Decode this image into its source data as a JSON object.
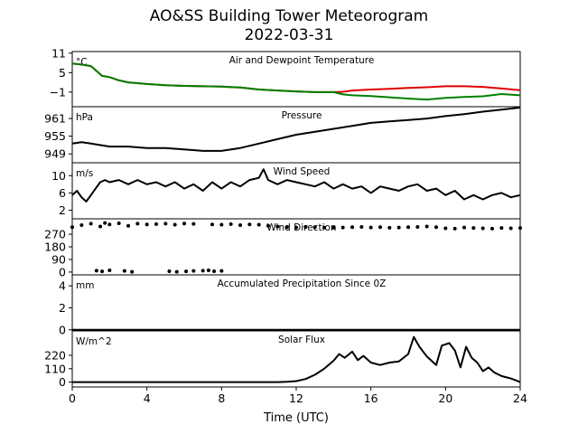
{
  "figure": {
    "title": "AO&SS Building Tower Meteorogram",
    "subtitle": "2022-03-31",
    "xlabel": "Time (UTC)"
  },
  "colors": {
    "temperature": "#e00000",
    "dewpoint": "#008000",
    "default_line": "#000000"
  },
  "chart_data": [
    {
      "type": "line",
      "title": "Air and Dewpoint Temperature",
      "unit": "°C",
      "xlim": [
        0,
        24
      ],
      "ylim": [
        -5.5,
        11.5
      ],
      "yticks": [
        11,
        5,
        -1
      ],
      "ytick_labels": [
        "11",
        "5",
        "−1"
      ],
      "series": [
        {
          "role": "temperature",
          "color": "#e00000",
          "x": [
            0,
            0.5,
            1,
            1.3,
            1.6,
            2,
            2.5,
            3,
            4,
            5,
            6,
            7,
            8,
            9,
            10,
            11,
            12,
            13,
            14,
            14.5,
            15,
            16,
            17,
            18,
            19,
            20,
            21,
            22,
            23,
            24
          ],
          "y": [
            7.8,
            7.5,
            7,
            5.5,
            4,
            3.6,
            2.6,
            2,
            1.5,
            1.1,
            0.9,
            0.8,
            0.7,
            0.4,
            -0.2,
            -0.5,
            -0.8,
            -1,
            -1,
            -0.9,
            -0.5,
            -0.2,
            0,
            0.3,
            0.5,
            0.8,
            0.8,
            0.6,
            0.1,
            -0.4
          ]
        },
        {
          "role": "dewpoint",
          "color": "#008000",
          "x": [
            0,
            0.5,
            1,
            1.3,
            1.6,
            2,
            2.5,
            3,
            4,
            5,
            6,
            7,
            8,
            9,
            10,
            11,
            12,
            13,
            14,
            14.5,
            15,
            16,
            17,
            18,
            19,
            20,
            21,
            22,
            23,
            24
          ],
          "y": [
            7.8,
            7.5,
            7,
            5.5,
            4,
            3.6,
            2.6,
            2,
            1.5,
            1.1,
            0.9,
            0.8,
            0.7,
            0.4,
            -0.2,
            -0.5,
            -0.8,
            -1,
            -1,
            -1.7,
            -2,
            -2.2,
            -2.6,
            -3,
            -3.3,
            -2.8,
            -2.5,
            -2.3,
            -1.6,
            -2
          ]
        }
      ]
    },
    {
      "type": "line",
      "title": "Pressure",
      "unit": "hPa",
      "xlim": [
        0,
        24
      ],
      "ylim": [
        946,
        965
      ],
      "yticks": [
        961,
        955,
        949
      ],
      "ytick_labels": [
        "961",
        "955",
        "949"
      ],
      "series": [
        {
          "role": "pressure",
          "color": "#000000",
          "x": [
            0,
            0.5,
            1,
            2,
            3,
            4,
            5,
            6,
            7,
            8,
            9,
            10,
            11,
            12,
            13,
            14,
            15,
            16,
            17,
            18,
            19,
            20,
            21,
            22,
            23,
            24
          ],
          "y": [
            952.5,
            953,
            952.5,
            951.5,
            951.5,
            951,
            951,
            950.5,
            950,
            950,
            951,
            952.5,
            954,
            955.5,
            956.5,
            957.5,
            958.5,
            959.5,
            960,
            960.5,
            961,
            961.8,
            962.5,
            963.3,
            964,
            964.7
          ]
        }
      ]
    },
    {
      "type": "line",
      "title": "Wind Speed",
      "unit": "m/s",
      "xlim": [
        0,
        24
      ],
      "ylim": [
        0,
        13
      ],
      "yticks": [
        10,
        6,
        2
      ],
      "ytick_labels": [
        "10",
        "6",
        "2"
      ],
      "series": [
        {
          "role": "wind_speed",
          "color": "#000000",
          "x": [
            0,
            0.25,
            0.5,
            0.75,
            1,
            1.25,
            1.5,
            1.75,
            2,
            2.5,
            3,
            3.5,
            4,
            4.5,
            5,
            5.5,
            6,
            6.5,
            7,
            7.5,
            8,
            8.5,
            9,
            9.5,
            10,
            10.25,
            10.5,
            11,
            11.5,
            12,
            12.5,
            13,
            13.5,
            14,
            14.5,
            15,
            15.5,
            16,
            16.5,
            17,
            17.5,
            18,
            18.5,
            19,
            19.5,
            20,
            20.5,
            21,
            21.5,
            22,
            22.5,
            23,
            23.5,
            24
          ],
          "y": [
            5.5,
            6.5,
            5,
            4,
            5.5,
            7,
            8.5,
            9,
            8.5,
            9,
            8,
            9,
            8,
            8.5,
            7.5,
            8.5,
            7,
            8,
            6.5,
            8.5,
            7,
            8.5,
            7.5,
            9,
            9.5,
            11.5,
            9,
            8,
            9,
            8.5,
            8,
            7.5,
            8.5,
            7,
            8,
            7,
            7.5,
            6,
            7.5,
            7,
            6.5,
            7.5,
            8,
            6.5,
            7,
            5.5,
            6.5,
            4.5,
            5.5,
            4.5,
            5.5,
            6,
            5,
            5.5
          ]
        }
      ]
    },
    {
      "type": "scatter",
      "title": "Wind Direction",
      "unit": "",
      "xlim": [
        0,
        24
      ],
      "ylim": [
        -20,
        380
      ],
      "yticks": [
        270,
        180,
        90,
        0
      ],
      "ytick_labels": [
        "270",
        "180",
        "90",
        "0"
      ],
      "series": [
        {
          "role": "wind_direction",
          "color": "#000000",
          "x": [
            0,
            0.5,
            1,
            1.5,
            1.75,
            2,
            2.5,
            3,
            3.5,
            4,
            4.5,
            5,
            5.5,
            6,
            6.5,
            7.5,
            8,
            8.5,
            9,
            9.5,
            10,
            10.5,
            11,
            11.5,
            12,
            12.5,
            13,
            13.5,
            14,
            14.5,
            15,
            15.5,
            16,
            16.5,
            17,
            17.5,
            18,
            18.5,
            19,
            19.5,
            20,
            20.5,
            21,
            21.5,
            22,
            22.5,
            23,
            23.5,
            24,
            1.3,
            1.6,
            2.0,
            2.8,
            3.2,
            5.2,
            5.6,
            6.1,
            6.5,
            7.0,
            7.3,
            7.6,
            8.0
          ],
          "y": [
            320,
            335,
            345,
            325,
            350,
            340,
            348,
            330,
            345,
            340,
            342,
            345,
            338,
            346,
            344,
            340,
            338,
            342,
            335,
            340,
            338,
            330,
            325,
            320,
            318,
            322,
            320,
            318,
            316,
            318,
            320,
            322,
            318,
            320,
            316,
            318,
            320,
            322,
            325,
            320,
            312,
            310,
            318,
            315,
            312,
            310,
            315,
            312,
            315,
            10,
            5,
            12,
            8,
            2,
            6,
            2,
            5,
            8,
            10,
            12,
            6,
            8
          ]
        }
      ]
    },
    {
      "type": "line",
      "title": "Accumulated Precipitation Since 0Z",
      "unit": "mm",
      "xlim": [
        0,
        24
      ],
      "ylim": [
        -0.1,
        5
      ],
      "yticks": [
        4,
        2,
        0
      ],
      "ytick_labels": [
        "4",
        "2",
        "0"
      ],
      "series": [
        {
          "role": "precipitation",
          "color": "#000000",
          "x": [
            0,
            24
          ],
          "y": [
            0,
            0
          ]
        }
      ]
    },
    {
      "type": "line",
      "title": "Solar Flux",
      "unit": "W/m^2",
      "xlim": [
        0,
        24
      ],
      "ylim": [
        -40,
        420
      ],
      "yticks": [
        220,
        110,
        0
      ],
      "ytick_labels": [
        "220",
        "110",
        "0"
      ],
      "series": [
        {
          "role": "solar_flux",
          "color": "#000000",
          "x": [
            0,
            11,
            11.5,
            12,
            12.5,
            13,
            13.5,
            14,
            14.3,
            14.6,
            15,
            15.3,
            15.6,
            16,
            16.5,
            17,
            17.5,
            18,
            18.3,
            18.6,
            19,
            19.5,
            19.8,
            20.2,
            20.5,
            20.8,
            21.1,
            21.4,
            21.7,
            22,
            22.3,
            22.6,
            23,
            23.5,
            24
          ],
          "y": [
            0,
            0,
            2,
            8,
            25,
            60,
            110,
            175,
            230,
            200,
            250,
            180,
            215,
            160,
            140,
            160,
            170,
            230,
            370,
            290,
            210,
            140,
            300,
            320,
            260,
            120,
            290,
            200,
            160,
            90,
            120,
            80,
            50,
            30,
            0
          ]
        }
      ]
    }
  ],
  "x_axis": {
    "ticks": [
      0,
      4,
      8,
      12,
      16,
      20,
      24
    ],
    "tick_labels": [
      "0",
      "4",
      "8",
      "12",
      "16",
      "20",
      "24"
    ]
  }
}
